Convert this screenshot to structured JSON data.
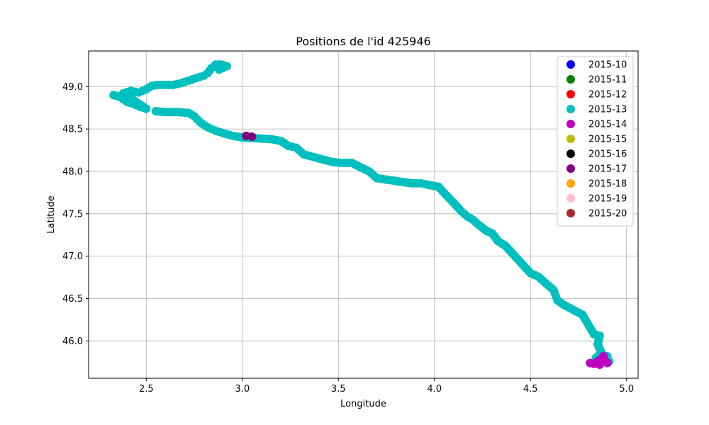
{
  "chart_data": {
    "type": "scatter",
    "title": "Positions de l'id 425946",
    "xlabel": "Longitude",
    "ylabel": "Latitude",
    "xlim": [
      2.2,
      5.06
    ],
    "ylim": [
      45.56,
      49.42
    ],
    "x_ticks": [
      "2.5",
      "3.0",
      "3.5",
      "4.0",
      "4.5",
      "5.0"
    ],
    "y_ticks": [
      "46.0",
      "46.5",
      "47.0",
      "47.5",
      "48.0",
      "48.5",
      "49.0"
    ],
    "grid": true,
    "legend_position": "top-right",
    "legend": [
      {
        "label": "2015-10",
        "color": "#0000ff"
      },
      {
        "label": "2015-11",
        "color": "#008000"
      },
      {
        "label": "2015-12",
        "color": "#ff0000"
      },
      {
        "label": "2015-13",
        "color": "#00bfbf"
      },
      {
        "label": "2015-14",
        "color": "#bf00bf"
      },
      {
        "label": "2015-15",
        "color": "#bfbf00"
      },
      {
        "label": "2015-16",
        "color": "#000000"
      },
      {
        "label": "2015-17",
        "color": "#800080"
      },
      {
        "label": "2015-18",
        "color": "#ffa500"
      },
      {
        "label": "2015-19",
        "color": "#ffc0cb"
      },
      {
        "label": "2015-20",
        "color": "#a52a2a"
      }
    ],
    "series": [
      {
        "name": "2015-17",
        "color": "#800080",
        "points": [
          [
            3.02,
            48.42
          ],
          [
            3.05,
            48.41
          ]
        ]
      },
      {
        "name": "2015-14",
        "color": "#bf00bf",
        "points": [
          [
            4.81,
            45.74
          ],
          [
            4.83,
            45.73
          ],
          [
            4.85,
            45.76
          ],
          [
            4.87,
            45.79
          ],
          [
            4.88,
            45.82
          ],
          [
            4.89,
            45.76
          ],
          [
            4.9,
            45.74
          ],
          [
            4.86,
            45.72
          ]
        ]
      },
      {
        "name": "2015-13",
        "color": "#00bfbf",
        "points": [
          [
            2.33,
            48.9
          ],
          [
            2.36,
            48.88
          ],
          [
            2.38,
            48.85
          ],
          [
            2.4,
            48.82
          ],
          [
            2.43,
            48.8
          ],
          [
            2.45,
            48.78
          ],
          [
            2.47,
            48.76
          ],
          [
            2.5,
            48.74
          ],
          [
            2.38,
            48.92
          ],
          [
            2.42,
            48.95
          ],
          [
            2.46,
            48.93
          ],
          [
            2.5,
            48.97
          ],
          [
            2.53,
            49.01
          ],
          [
            2.56,
            49.02
          ],
          [
            2.6,
            49.02
          ],
          [
            2.64,
            49.02
          ],
          [
            2.68,
            49.04
          ],
          [
            2.72,
            49.07
          ],
          [
            2.76,
            49.1
          ],
          [
            2.8,
            49.13
          ],
          [
            2.82,
            49.16
          ],
          [
            2.84,
            49.22
          ],
          [
            2.86,
            49.26
          ],
          [
            2.89,
            49.26
          ],
          [
            2.92,
            49.24
          ],
          [
            2.88,
            49.2
          ],
          [
            2.55,
            48.71
          ],
          [
            2.6,
            48.7
          ],
          [
            2.66,
            48.7
          ],
          [
            2.72,
            48.69
          ],
          [
            2.75,
            48.65
          ],
          [
            2.78,
            48.58
          ],
          [
            2.82,
            48.52
          ],
          [
            2.86,
            48.48
          ],
          [
            2.9,
            48.45
          ],
          [
            2.95,
            48.42
          ],
          [
            3.0,
            48.4
          ],
          [
            3.08,
            48.39
          ],
          [
            3.15,
            48.38
          ],
          [
            3.2,
            48.36
          ],
          [
            3.24,
            48.3
          ],
          [
            3.28,
            48.28
          ],
          [
            3.32,
            48.2
          ],
          [
            3.37,
            48.17
          ],
          [
            3.42,
            48.14
          ],
          [
            3.47,
            48.11
          ],
          [
            3.52,
            48.1
          ],
          [
            3.57,
            48.1
          ],
          [
            3.66,
            48.0
          ],
          [
            3.7,
            47.92
          ],
          [
            3.88,
            47.86
          ],
          [
            3.93,
            47.86
          ],
          [
            3.97,
            47.84
          ],
          [
            4.02,
            47.82
          ],
          [
            4.14,
            47.53
          ],
          [
            4.17,
            47.47
          ],
          [
            4.2,
            47.43
          ],
          [
            4.23,
            47.37
          ],
          [
            4.27,
            47.3
          ],
          [
            4.3,
            47.27
          ],
          [
            4.33,
            47.18
          ],
          [
            4.37,
            47.12
          ],
          [
            4.5,
            46.8
          ],
          [
            4.54,
            46.76
          ],
          [
            4.58,
            46.68
          ],
          [
            4.62,
            46.6
          ],
          [
            4.64,
            46.48
          ],
          [
            4.67,
            46.43
          ],
          [
            4.72,
            46.37
          ],
          [
            4.77,
            46.31
          ],
          [
            4.83,
            46.08
          ],
          [
            4.86,
            46.06
          ],
          [
            4.85,
            45.96
          ],
          [
            4.87,
            45.86
          ],
          [
            4.84,
            45.8
          ],
          [
            4.86,
            45.74
          ],
          [
            4.9,
            45.82
          ],
          [
            4.91,
            45.76
          ]
        ]
      }
    ]
  }
}
